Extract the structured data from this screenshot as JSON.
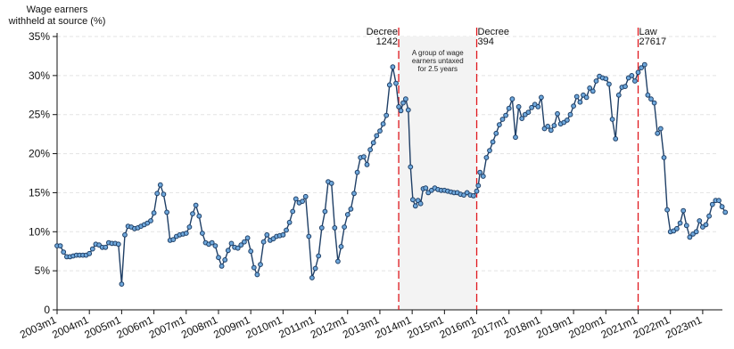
{
  "chart_data": {
    "type": "line",
    "ylabel": [
      "Wage earners",
      "withheld at source (%)"
    ],
    "xlabel": "",
    "ylim": [
      0,
      36
    ],
    "y_ticks": [
      0,
      5,
      10,
      15,
      20,
      25,
      30,
      35
    ],
    "y_tick_labels": [
      "0",
      "5%",
      "10%",
      "15%",
      "20%",
      "25%",
      "30%",
      "35%"
    ],
    "x_range": [
      2003.0,
      2023.5
    ],
    "x_ticks": [
      "2003m1",
      "2004m1",
      "2005m1",
      "2006m1",
      "2007m1",
      "2008m1",
      "2009m1",
      "2010m1",
      "2011m1",
      "2012m1",
      "2013m1",
      "2014m1",
      "2015m1",
      "2016m1",
      "2017m1",
      "2018m1",
      "2019m1",
      "2020m1",
      "2021m1",
      "2022m1",
      "2023m1"
    ],
    "grid": "horizontal dashed",
    "colors": {
      "line": "#1f3f66",
      "marker_fill": "#6fa8dc",
      "marker_edge": "#1f3f66",
      "vline": "#e0191f",
      "shade": "#f3f3f3"
    },
    "shaded_region": {
      "x_start": 2013.583,
      "x_end": 2016.0,
      "text": [
        "A group of wage",
        "earners untaxed",
        "for 2.5 years"
      ]
    },
    "vertical_lines": [
      {
        "x": 2013.583,
        "label": [
          "Decree",
          "1242"
        ]
      },
      {
        "x": 2016.0,
        "label": [
          "Decree",
          "394"
        ]
      },
      {
        "x": 2021.0,
        "label": [
          "Law",
          "27617"
        ]
      }
    ],
    "series": [
      {
        "points": [
          [
            2003.0,
            8.2
          ],
          [
            2003.1,
            8.2
          ],
          [
            2003.2,
            7.4
          ],
          [
            2003.3,
            6.8
          ],
          [
            2003.4,
            6.8
          ],
          [
            2003.5,
            6.9
          ],
          [
            2003.6,
            7.0
          ],
          [
            2003.7,
            7.0
          ],
          [
            2003.8,
            7.0
          ],
          [
            2003.9,
            7.0
          ],
          [
            2004.0,
            7.2
          ],
          [
            2004.1,
            7.8
          ],
          [
            2004.2,
            8.4
          ],
          [
            2004.3,
            8.3
          ],
          [
            2004.4,
            8.0
          ],
          [
            2004.5,
            8.0
          ],
          [
            2004.6,
            8.6
          ],
          [
            2004.7,
            8.5
          ],
          [
            2004.8,
            8.5
          ],
          [
            2004.9,
            8.4
          ],
          [
            2005.0,
            3.3
          ],
          [
            2005.1,
            9.6
          ],
          [
            2005.2,
            10.7
          ],
          [
            2005.3,
            10.6
          ],
          [
            2005.4,
            10.4
          ],
          [
            2005.5,
            10.5
          ],
          [
            2005.6,
            10.7
          ],
          [
            2005.7,
            10.9
          ],
          [
            2005.8,
            11.1
          ],
          [
            2005.9,
            11.4
          ],
          [
            2006.0,
            12.4
          ],
          [
            2006.1,
            14.9
          ],
          [
            2006.2,
            16.0
          ],
          [
            2006.3,
            14.8
          ],
          [
            2006.4,
            12.5
          ],
          [
            2006.5,
            8.9
          ],
          [
            2006.6,
            9.0
          ],
          [
            2006.7,
            9.4
          ],
          [
            2006.8,
            9.6
          ],
          [
            2006.9,
            9.7
          ],
          [
            2007.0,
            9.8
          ],
          [
            2007.1,
            10.6
          ],
          [
            2007.2,
            12.3
          ],
          [
            2007.3,
            13.4
          ],
          [
            2007.4,
            12.0
          ],
          [
            2007.5,
            9.8
          ],
          [
            2007.6,
            8.6
          ],
          [
            2007.7,
            8.4
          ],
          [
            2007.8,
            8.6
          ],
          [
            2007.9,
            8.2
          ],
          [
            2008.0,
            6.7
          ],
          [
            2008.1,
            5.6
          ],
          [
            2008.2,
            6.4
          ],
          [
            2008.3,
            7.6
          ],
          [
            2008.4,
            8.5
          ],
          [
            2008.5,
            8.0
          ],
          [
            2008.6,
            7.9
          ],
          [
            2008.7,
            8.3
          ],
          [
            2008.8,
            8.7
          ],
          [
            2008.9,
            9.2
          ],
          [
            2009.0,
            7.5
          ],
          [
            2009.1,
            5.4
          ],
          [
            2009.2,
            4.5
          ],
          [
            2009.3,
            5.8
          ],
          [
            2009.4,
            8.7
          ],
          [
            2009.5,
            9.6
          ],
          [
            2009.6,
            8.9
          ],
          [
            2009.7,
            9.1
          ],
          [
            2009.8,
            9.4
          ],
          [
            2009.9,
            9.5
          ],
          [
            2010.0,
            9.6
          ],
          [
            2010.1,
            10.2
          ],
          [
            2010.2,
            11.2
          ],
          [
            2010.3,
            12.6
          ],
          [
            2010.4,
            14.2
          ],
          [
            2010.5,
            13.7
          ],
          [
            2010.6,
            13.9
          ],
          [
            2010.7,
            14.5
          ],
          [
            2010.8,
            9.4
          ],
          [
            2010.9,
            4.1
          ],
          [
            2011.0,
            5.3
          ],
          [
            2011.1,
            6.9
          ],
          [
            2011.2,
            10.5
          ],
          [
            2011.3,
            12.6
          ],
          [
            2011.4,
            16.4
          ],
          [
            2011.5,
            16.2
          ],
          [
            2011.6,
            10.5
          ],
          [
            2011.7,
            6.2
          ],
          [
            2011.8,
            8.1
          ],
          [
            2011.9,
            10.6
          ],
          [
            2012.0,
            12.2
          ],
          [
            2012.1,
            12.9
          ],
          [
            2012.2,
            14.9
          ],
          [
            2012.3,
            17.6
          ],
          [
            2012.4,
            19.5
          ],
          [
            2012.5,
            19.6
          ],
          [
            2012.6,
            18.6
          ],
          [
            2012.7,
            20.5
          ],
          [
            2012.8,
            21.4
          ],
          [
            2012.9,
            22.3
          ],
          [
            2013.0,
            22.9
          ],
          [
            2013.1,
            23.8
          ],
          [
            2013.2,
            24.9
          ],
          [
            2013.3,
            28.8
          ],
          [
            2013.4,
            31.1
          ],
          [
            2013.5,
            29.0
          ],
          [
            2013.583,
            26.0
          ],
          [
            2013.65,
            25.5
          ],
          [
            2013.72,
            26.5
          ],
          [
            2013.8,
            27.0
          ],
          [
            2013.88,
            25.6
          ],
          [
            2013.95,
            18.3
          ],
          [
            2014.02,
            14.1
          ],
          [
            2014.1,
            13.3
          ],
          [
            2014.18,
            14.0
          ],
          [
            2014.26,
            13.6
          ],
          [
            2014.34,
            15.5
          ],
          [
            2014.42,
            15.6
          ],
          [
            2014.5,
            15.0
          ],
          [
            2014.6,
            15.3
          ],
          [
            2014.7,
            15.6
          ],
          [
            2014.8,
            15.4
          ],
          [
            2014.9,
            15.3
          ],
          [
            2015.0,
            15.3
          ],
          [
            2015.1,
            15.2
          ],
          [
            2015.2,
            15.1
          ],
          [
            2015.3,
            15.0
          ],
          [
            2015.4,
            15.0
          ],
          [
            2015.5,
            14.8
          ],
          [
            2015.6,
            14.7
          ],
          [
            2015.7,
            15.0
          ],
          [
            2015.8,
            14.7
          ],
          [
            2015.9,
            14.6
          ],
          [
            2016.0,
            15.2
          ],
          [
            2016.05,
            15.9
          ],
          [
            2016.1,
            17.6
          ],
          [
            2016.2,
            17.1
          ],
          [
            2016.3,
            19.5
          ],
          [
            2016.4,
            20.4
          ],
          [
            2016.5,
            21.5
          ],
          [
            2016.6,
            22.6
          ],
          [
            2016.7,
            23.7
          ],
          [
            2016.8,
            24.4
          ],
          [
            2016.9,
            24.9
          ],
          [
            2017.0,
            25.8
          ],
          [
            2017.1,
            27.0
          ],
          [
            2017.2,
            22.1
          ],
          [
            2017.3,
            26.0
          ],
          [
            2017.4,
            24.5
          ],
          [
            2017.5,
            25.0
          ],
          [
            2017.6,
            25.3
          ],
          [
            2017.7,
            25.9
          ],
          [
            2017.8,
            26.3
          ],
          [
            2017.9,
            26.0
          ],
          [
            2018.0,
            27.2
          ],
          [
            2018.1,
            23.2
          ],
          [
            2018.2,
            23.5
          ],
          [
            2018.3,
            23.0
          ],
          [
            2018.4,
            23.6
          ],
          [
            2018.5,
            25.1
          ],
          [
            2018.6,
            23.8
          ],
          [
            2018.7,
            24.0
          ],
          [
            2018.8,
            24.3
          ],
          [
            2018.9,
            25.0
          ],
          [
            2019.0,
            26.1
          ],
          [
            2019.1,
            27.3
          ],
          [
            2019.2,
            26.6
          ],
          [
            2019.3,
            27.5
          ],
          [
            2019.4,
            27.2
          ],
          [
            2019.5,
            28.4
          ],
          [
            2019.6,
            28.0
          ],
          [
            2019.7,
            29.3
          ],
          [
            2019.8,
            29.9
          ],
          [
            2019.9,
            29.7
          ],
          [
            2020.0,
            29.6
          ],
          [
            2020.1,
            28.9
          ],
          [
            2020.2,
            24.4
          ],
          [
            2020.3,
            21.9
          ],
          [
            2020.4,
            27.5
          ],
          [
            2020.5,
            28.5
          ],
          [
            2020.6,
            28.6
          ],
          [
            2020.7,
            29.7
          ],
          [
            2020.8,
            30.0
          ],
          [
            2020.9,
            29.3
          ],
          [
            2021.0,
            30.4
          ],
          [
            2021.1,
            31.0
          ],
          [
            2021.2,
            31.4
          ],
          [
            2021.3,
            27.5
          ],
          [
            2021.4,
            27.0
          ],
          [
            2021.5,
            26.5
          ],
          [
            2021.6,
            22.6
          ],
          [
            2021.7,
            23.2
          ],
          [
            2021.8,
            19.5
          ],
          [
            2021.9,
            12.8
          ],
          [
            2022.0,
            10.0
          ],
          [
            2022.1,
            10.1
          ],
          [
            2022.2,
            10.4
          ],
          [
            2022.3,
            11.1
          ],
          [
            2022.4,
            12.7
          ],
          [
            2022.5,
            10.8
          ],
          [
            2022.6,
            9.3
          ],
          [
            2022.7,
            9.7
          ],
          [
            2022.8,
            10.0
          ],
          [
            2022.9,
            11.4
          ],
          [
            2023.0,
            10.6
          ],
          [
            2023.1,
            10.9
          ],
          [
            2023.2,
            12.0
          ],
          [
            2023.3,
            13.5
          ],
          [
            2023.4,
            14.0
          ],
          [
            2023.5,
            14.0
          ],
          [
            2023.6,
            13.2
          ],
          [
            2023.7,
            12.5
          ]
        ]
      }
    ]
  }
}
